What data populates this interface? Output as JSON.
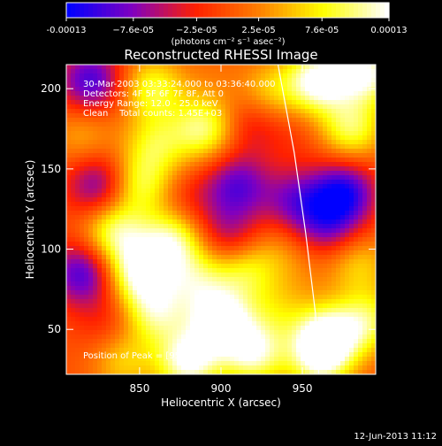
{
  "chart_data": {
    "type": "heatmap",
    "title": "Reconstructed RHESSI Image",
    "xlabel": "Heliocentric X (arcsec)",
    "ylabel": "Heliocentric Y (arcsec)",
    "x_ticks": [
      850,
      900,
      950
    ],
    "y_ticks": [
      50,
      100,
      150,
      200
    ],
    "xlim": [
      805,
      995
    ],
    "ylim": [
      22,
      215
    ],
    "colorbar": {
      "label": "(photons cm⁻² s⁻¹ asec⁻²)",
      "range": [
        -0.00013,
        0.00013
      ],
      "tick_labels": [
        "-0.00013",
        "−7.6e-05",
        "−2.5e-05",
        "2.5e-05",
        "7.6e-05",
        "0.00013"
      ],
      "tick_values": [
        -0.00013,
        -7.6e-05,
        -2.5e-05,
        2.5e-05,
        7.6e-05,
        0.00013
      ],
      "colormap": [
        "#0000ff",
        "#8000c0",
        "#ff2000",
        "#ff8000",
        "#ffff00",
        "#ffffff"
      ]
    },
    "limb_curve": [
      [
        935,
        215
      ],
      [
        945,
        160
      ],
      [
        952,
        110
      ],
      [
        958,
        60
      ],
      [
        960,
        22
      ]
    ],
    "peak": [
      951,
      200
    ],
    "blobs": [
      {
        "x": 820,
        "y": 205,
        "v": -0.7
      },
      {
        "x": 858,
        "y": 200,
        "v": 0.6
      },
      {
        "x": 895,
        "y": 205,
        "v": 0.1
      },
      {
        "x": 930,
        "y": 198,
        "v": 0.4
      },
      {
        "x": 960,
        "y": 205,
        "v": 0.95
      },
      {
        "x": 990,
        "y": 210,
        "v": 0.85
      },
      {
        "x": 815,
        "y": 170,
        "v": 0.3
      },
      {
        "x": 860,
        "y": 165,
        "v": 0.5
      },
      {
        "x": 890,
        "y": 175,
        "v": 0.7
      },
      {
        "x": 918,
        "y": 178,
        "v": -0.3
      },
      {
        "x": 945,
        "y": 170,
        "v": -0.1
      },
      {
        "x": 980,
        "y": 175,
        "v": 0.65
      },
      {
        "x": 825,
        "y": 140,
        "v": -0.6
      },
      {
        "x": 850,
        "y": 140,
        "v": 0.6
      },
      {
        "x": 880,
        "y": 130,
        "v": -0.2
      },
      {
        "x": 910,
        "y": 140,
        "v": -0.6
      },
      {
        "x": 945,
        "y": 130,
        "v": -0.5
      },
      {
        "x": 975,
        "y": 135,
        "v": -0.8
      },
      {
        "x": 835,
        "y": 110,
        "v": 0.7
      },
      {
        "x": 870,
        "y": 105,
        "v": 0.75
      },
      {
        "x": 905,
        "y": 110,
        "v": -0.4
      },
      {
        "x": 935,
        "y": 100,
        "v": 0.2
      },
      {
        "x": 965,
        "y": 115,
        "v": -0.5
      },
      {
        "x": 815,
        "y": 85,
        "v": -0.7
      },
      {
        "x": 850,
        "y": 85,
        "v": 0.85
      },
      {
        "x": 885,
        "y": 80,
        "v": 0.55
      },
      {
        "x": 915,
        "y": 85,
        "v": 0.5
      },
      {
        "x": 950,
        "y": 85,
        "v": 0.1
      },
      {
        "x": 985,
        "y": 90,
        "v": 0.4
      },
      {
        "x": 830,
        "y": 55,
        "v": -0.2
      },
      {
        "x": 860,
        "y": 60,
        "v": 0.65
      },
      {
        "x": 900,
        "y": 55,
        "v": 0.95
      },
      {
        "x": 935,
        "y": 60,
        "v": 0.3
      },
      {
        "x": 965,
        "y": 45,
        "v": 0.95
      },
      {
        "x": 990,
        "y": 55,
        "v": 0.6
      },
      {
        "x": 840,
        "y": 30,
        "v": 0.4
      },
      {
        "x": 880,
        "y": 30,
        "v": 0.9
      },
      {
        "x": 920,
        "y": 35,
        "v": 0.8
      },
      {
        "x": 960,
        "y": 30,
        "v": 0.6
      }
    ]
  },
  "annotations": {
    "line1": "30-Mar-2003 03:33:24.000 to 03:36:40.000",
    "line2": "Detectors: 4F 5F 6F 7F 8F, Att 0",
    "line3": "Energy Range: 12.0 - 25.0 keV",
    "line4": "Clean    Total counts: 1.45E+03",
    "peak_label": "Position of Peak = [951,200]"
  },
  "footer": {
    "timestamp": "12-Jun-2013 11:12"
  }
}
